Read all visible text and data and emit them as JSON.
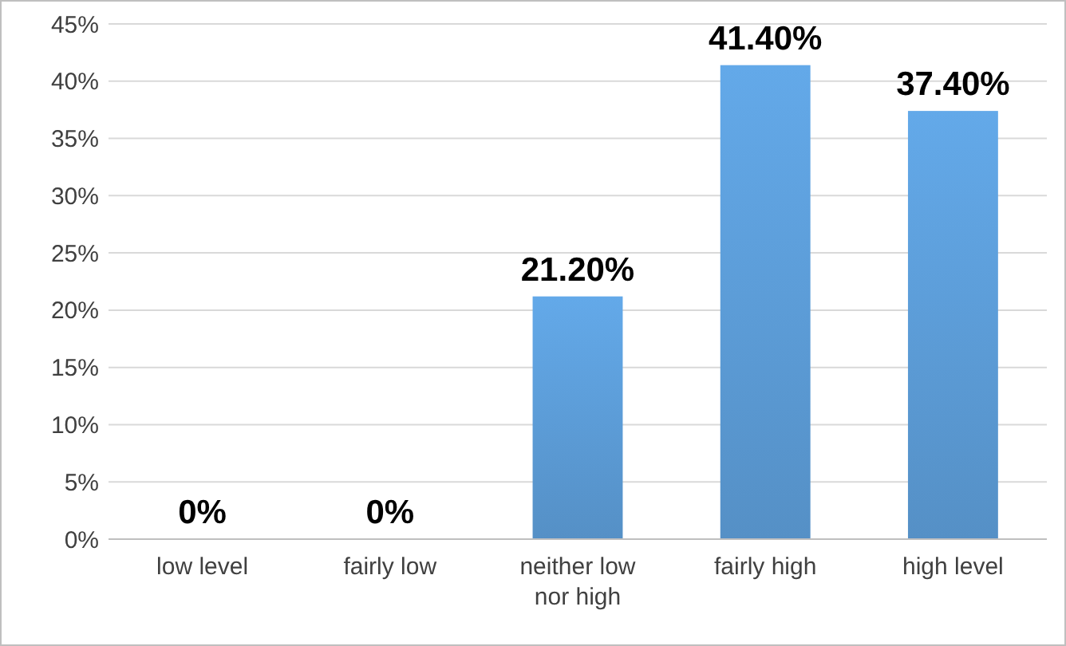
{
  "chart_data": {
    "type": "bar",
    "categories": [
      "low level",
      "fairly low",
      "neither low nor high",
      "fairly high",
      "high level"
    ],
    "values": [
      0,
      0,
      21.2,
      41.4,
      37.4
    ],
    "color": "#5b9bd5",
    "value_labels": [
      "0%",
      "0%",
      "21.20%",
      "41.40%",
      "37.40%"
    ],
    "ylim": [
      0,
      45
    ],
    "yticks": [
      {
        "value": 0,
        "label": "0%"
      },
      {
        "value": 5,
        "label": "5%"
      },
      {
        "value": 10,
        "label": "10%"
      },
      {
        "value": 15,
        "label": "15%"
      },
      {
        "value": 20,
        "label": "20%"
      },
      {
        "value": 25,
        "label": "25%"
      },
      {
        "value": 30,
        "label": "30%"
      },
      {
        "value": 35,
        "label": "35%"
      },
      {
        "value": 40,
        "label": "40%"
      },
      {
        "value": 45,
        "label": "45%"
      }
    ],
    "grid": "y"
  }
}
